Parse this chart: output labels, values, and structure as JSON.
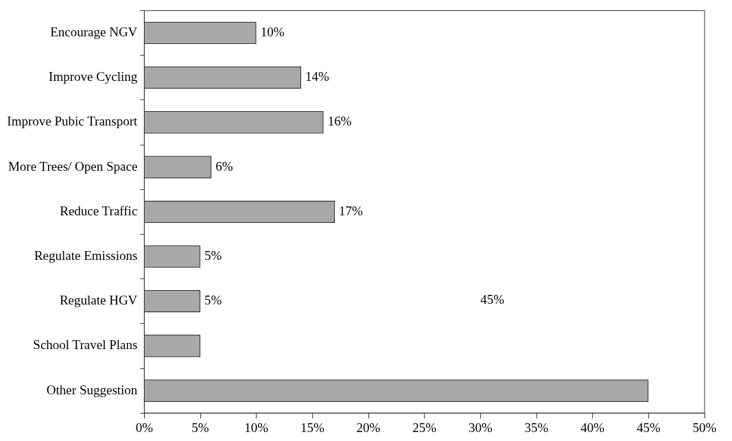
{
  "chart_data": {
    "type": "bar",
    "orientation": "horizontal",
    "categories": [
      "Encourage NGV",
      "Improve Cycling",
      "Improve Pubic Transport",
      "More Trees/ Open Space",
      "Reduce Traffic",
      "Regulate Emissions",
      "Regulate HGV",
      "School Travel Plans",
      "Other Suggestion"
    ],
    "values": [
      10,
      14,
      16,
      6,
      17,
      5,
      5,
      5,
      45
    ],
    "value_labels": [
      "10%",
      "14%",
      "16%",
      "6%",
      "17%",
      "5%",
      "5%",
      null,
      null
    ],
    "color": "#a8a8a8",
    "xlim": [
      0,
      50
    ],
    "xticks": [
      {
        "value": 0,
        "label": "0%"
      },
      {
        "value": 5,
        "label": "5%"
      },
      {
        "value": 10,
        "label": "10%"
      },
      {
        "value": 15,
        "label": "15%"
      },
      {
        "value": 20,
        "label": "20%"
      },
      {
        "value": 25,
        "label": "25%"
      },
      {
        "value": 30,
        "label": "30%"
      },
      {
        "value": 35,
        "label": "35%"
      },
      {
        "value": 40,
        "label": "40%"
      },
      {
        "value": 45,
        "label": "45%"
      },
      {
        "value": 50,
        "label": "50%"
      }
    ],
    "annotations": [
      "45%"
    ],
    "grid": false,
    "legend": false
  }
}
